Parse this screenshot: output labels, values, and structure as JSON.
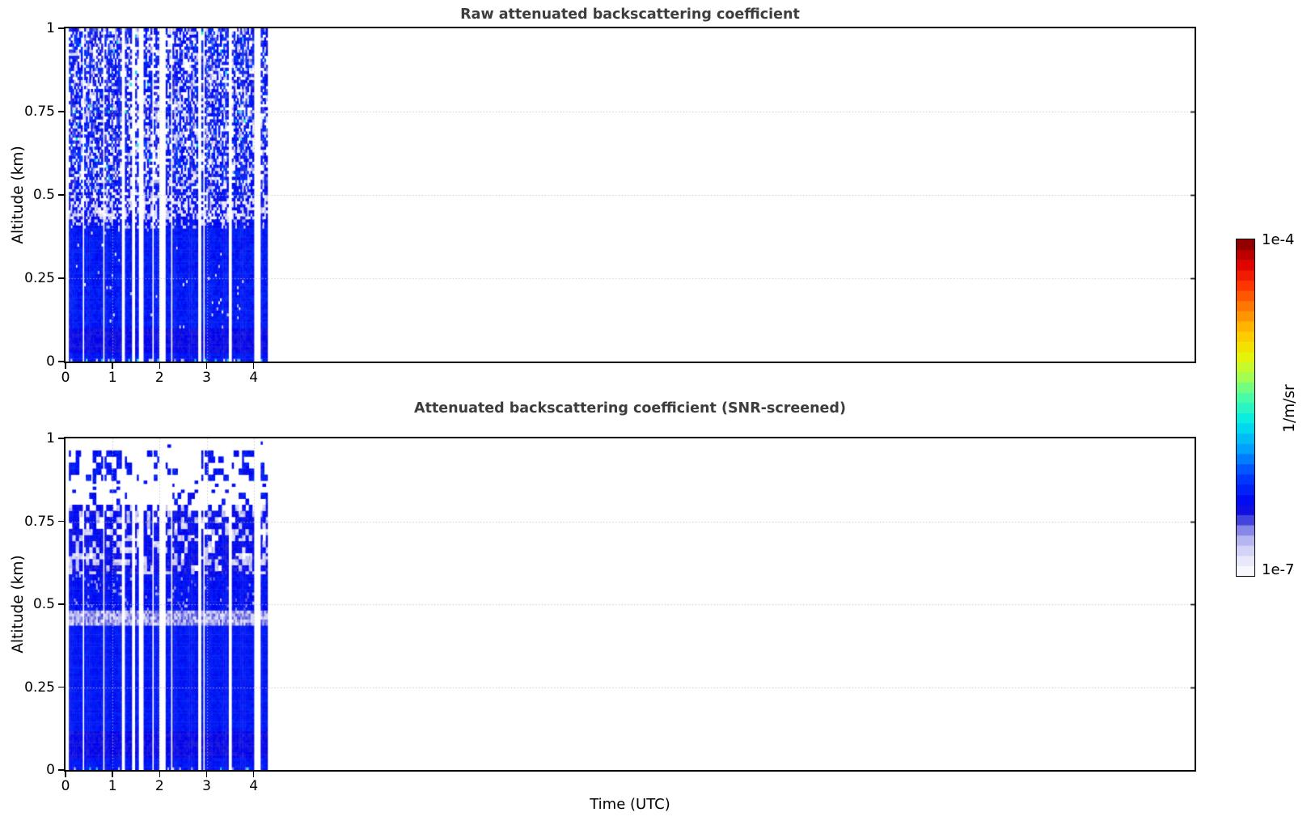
{
  "colorbar": {
    "max_label": "1e-4",
    "min_label": "1e-7",
    "unit_label": "1/m/sr",
    "levels": 33,
    "stops": [
      [
        0.0,
        "#ffffff"
      ],
      [
        0.03,
        "#f0f0fd"
      ],
      [
        0.06,
        "#e0e0fa"
      ],
      [
        0.09,
        "#c8c8f5"
      ],
      [
        0.12,
        "#a4a4ee"
      ],
      [
        0.15,
        "#6e6ee4"
      ],
      [
        0.18,
        "#2222d8"
      ],
      [
        0.21,
        "#0000ee"
      ],
      [
        0.3,
        "#0040ff"
      ],
      [
        0.38,
        "#00a4ff"
      ],
      [
        0.46,
        "#00eaea"
      ],
      [
        0.54,
        "#52ff9e"
      ],
      [
        0.6,
        "#b0ff44"
      ],
      [
        0.66,
        "#eef000"
      ],
      [
        0.73,
        "#ffc000"
      ],
      [
        0.8,
        "#ff7a00"
      ],
      [
        0.87,
        "#ff2e00"
      ],
      [
        0.93,
        "#dd0000"
      ],
      [
        1.0,
        "#7f0000"
      ]
    ]
  },
  "chart_data": [
    {
      "type": "heatmap",
      "title": "Raw attenuated backscattering coefficient",
      "xlabel": "Time (UTC)",
      "ylabel": "Altitude (km)",
      "xlim": [
        0,
        24
      ],
      "ylim": [
        0,
        1
      ],
      "xticks": [
        0,
        1,
        2,
        3,
        4
      ],
      "xtick_labels": [
        "0",
        "1",
        "2",
        "3",
        "4"
      ],
      "yticks": [
        1,
        0.75,
        0.5,
        0.25,
        0
      ],
      "ytick_labels": [
        "1",
        "0.75",
        "0.5",
        "0.25",
        "0"
      ],
      "grid_x": [
        1,
        2,
        3,
        4
      ],
      "grid_y": [
        0.25,
        0.5,
        0.75
      ],
      "scale": "log",
      "clim": [
        "1e-7",
        "1e-4"
      ],
      "units": "1/m/sr",
      "data_time_extent": [
        0,
        4.33
      ],
      "profiles": 120,
      "rows": 110,
      "seed": 42,
      "gap_seed": 2024,
      "missing_columns": 26,
      "fixed_gap_columns": [
        1
      ],
      "description": "Lidar/ceilometer raw attenuated backscatter: solid blue (~2e-6 1/m/sr) below ~0.4 km, noisy white band near 0.45 km, dense blue/white speckle noise from 0.5 to 1 km; data only for 0-4.3 UTC with many missing-profile white columns.",
      "regions": [
        {
          "alt": [
            0.0,
            0.012
          ],
          "base": [
            0.22,
            0.26
          ],
          "light_p": 0.2,
          "light": [
            0.06,
            0.14
          ],
          "cyan_p": 0.1
        },
        {
          "alt": [
            0.012,
            0.03
          ],
          "base": [
            0.22,
            0.26
          ]
        },
        {
          "alt": [
            0.03,
            0.1
          ],
          "base": [
            0.185,
            0.215
          ]
        },
        {
          "alt": [
            0.1,
            0.4
          ],
          "base": [
            0.22,
            0.27
          ],
          "light_p": 0.012,
          "nan_p": 0.004
        },
        {
          "alt": [
            0.4,
            0.43
          ],
          "base": [
            0.2,
            0.26
          ],
          "light_p": 0.22,
          "light": [
            0.05,
            0.13
          ],
          "nan_p": 0.05
        },
        {
          "alt": [
            0.43,
            0.487
          ],
          "base": [
            0.18,
            0.25
          ],
          "light_p": 0.45,
          "light": [
            0.03,
            0.11
          ],
          "nan_p": 0.12
        },
        {
          "alt": [
            0.487,
            0.53
          ],
          "base": [
            0.18,
            0.28
          ],
          "light_p": 0.25,
          "light": [
            0.04,
            0.12
          ],
          "nan_p": 0.15
        },
        {
          "alt": [
            0.53,
            1.01
          ],
          "base": [
            0.16,
            0.3
          ],
          "light_p": 0.22,
          "light": [
            0.04,
            0.13
          ],
          "nan_p": 0.25,
          "cyan_p": 0.007,
          "col_striping": true
        }
      ]
    },
    {
      "type": "heatmap",
      "title": "Attenuated backscattering coefficient (SNR-screened)",
      "xlabel": "Time (UTC)",
      "ylabel": "Altitude (km)",
      "xlim": [
        0,
        24
      ],
      "ylim": [
        0,
        1
      ],
      "xticks": [
        0,
        1,
        2,
        3,
        4
      ],
      "xtick_labels": [
        "0",
        "1",
        "2",
        "3",
        "4"
      ],
      "yticks": [
        1,
        0.75,
        0.5,
        0.25,
        0
      ],
      "ytick_labels": [
        "1",
        "0.75",
        "0.5",
        "0.25",
        "0"
      ],
      "grid_x": [
        1,
        2,
        3,
        4
      ],
      "grid_y": [
        0.25,
        0.5,
        0.75
      ],
      "scale": "log",
      "clim": [
        "1e-7",
        "1e-4"
      ],
      "units": "1/m/sr",
      "data_time_extent": [
        0,
        4.33
      ],
      "profiles": 120,
      "rows": 110,
      "seed": 1337,
      "gap_seed": 2024,
      "missing_columns": 26,
      "fixed_gap_columns": [
        1
      ],
      "description": "Same scene after SNR screening: solid blue below ~0.6 km with pale lavender layers near 0.45 and 0.6 km, blocky blue/white mix 0.6-0.8 km, mostly clear 0.8-0.85 km, scattered blue cloud blobs 0.85-0.97 km; data only for 0-4.3 UTC.",
      "regions": [
        {
          "alt": [
            0.0,
            0.012
          ],
          "base": [
            0.22,
            0.26
          ],
          "light_p": 0.15,
          "light": [
            0.08,
            0.14
          ],
          "cyan_p": 0.08
        },
        {
          "alt": [
            0.012,
            0.04
          ],
          "base": [
            0.22,
            0.26
          ]
        },
        {
          "alt": [
            0.04,
            0.115
          ],
          "base": [
            0.185,
            0.215
          ]
        },
        {
          "alt": [
            0.115,
            0.435
          ],
          "base": [
            0.225,
            0.26
          ]
        },
        {
          "alt": [
            0.435,
            0.485
          ],
          "base": [
            0.1,
            0.17
          ],
          "light_p": 0.35,
          "light": [
            0.05,
            0.1
          ]
        },
        {
          "alt": [
            0.485,
            0.595
          ],
          "base": [
            0.21,
            0.255
          ],
          "light_p": 0.07,
          "light": [
            0.1,
            0.16
          ]
        },
        {
          "alt": [
            0.595,
            0.65
          ],
          "base": [
            0.17,
            0.24
          ],
          "light_p": 0.4,
          "light": [
            0.05,
            0.12
          ],
          "nan_p": 0.03,
          "block": [
            2,
            2
          ]
        },
        {
          "alt": [
            0.65,
            0.7
          ],
          "base": [
            0.18,
            0.25
          ],
          "light_p": 0.3,
          "light": [
            0.04,
            0.11
          ],
          "nan_p": 0.1,
          "block": [
            2,
            2
          ]
        },
        {
          "alt": [
            0.7,
            0.78
          ],
          "base": [
            0.18,
            0.25
          ],
          "light_p": 0.2,
          "light": [
            0.05,
            0.12
          ],
          "nan_p": 0.14,
          "block": [
            2,
            2
          ]
        },
        {
          "alt": [
            0.78,
            0.8
          ],
          "base": [
            0.19,
            0.25
          ],
          "light_p": 0.1,
          "light": [
            0.05,
            0.12
          ],
          "nan_p": 0.45,
          "block": [
            2,
            2
          ]
        },
        {
          "alt": [
            0.8,
            0.85
          ],
          "base": [
            0.2,
            0.26
          ],
          "nan_p": 0.88,
          "block": [
            2,
            2
          ]
        },
        {
          "alt": [
            0.85,
            0.875
          ],
          "base": [
            0.2,
            0.26
          ],
          "nan_p": 0.93,
          "block": [
            2,
            1
          ]
        },
        {
          "alt": [
            0.875,
            0.965
          ],
          "base": [
            0.2,
            0.27
          ],
          "nan_p": 0.66,
          "block": [
            3,
            2
          ],
          "cyan_p": 0.003,
          "cluster": true
        },
        {
          "alt": [
            0.965,
            1.01
          ],
          "base": [
            0.2,
            0.25
          ],
          "nan_p": 0.96,
          "block": [
            2,
            1
          ]
        }
      ]
    }
  ]
}
